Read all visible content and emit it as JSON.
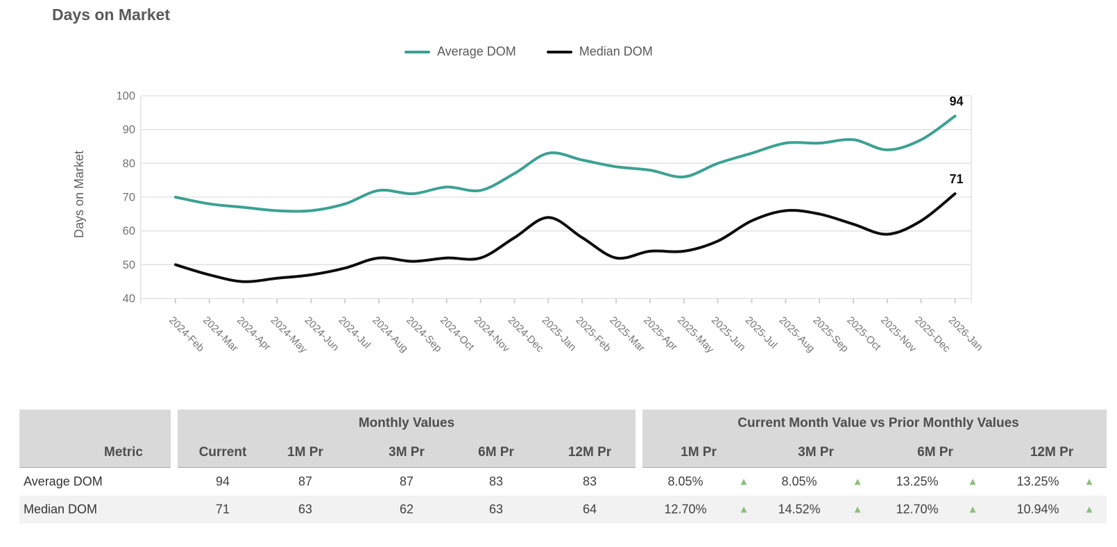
{
  "title": "Days on Market",
  "legend": [
    {
      "label": "Average DOM",
      "color": "#3ba192"
    },
    {
      "label": "Median DOM",
      "color": "#0d0d0d"
    }
  ],
  "chart_data": {
    "type": "line",
    "x": [
      "2024-Feb",
      "2024-Mar",
      "2024-Apr",
      "2024-May",
      "2024-Jun",
      "2024-Jul",
      "2024-Aug",
      "2024-Sep",
      "2024-Oct",
      "2024-Nov",
      "2024-Dec",
      "2025-Jan",
      "2025-Feb",
      "2025-Mar",
      "2025-Apr",
      "2025-May",
      "2025-Jun",
      "2025-Jul",
      "2025-Aug",
      "2025-Sep",
      "2025-Oct",
      "2025-Nov",
      "2025-Dec",
      "2026-Jan"
    ],
    "series": [
      {
        "name": "Average DOM",
        "color": "#3ba192",
        "values": [
          70,
          68,
          67,
          66,
          66,
          68,
          72,
          71,
          73,
          72,
          77,
          83,
          81,
          79,
          78,
          76,
          80,
          83,
          86,
          86,
          87,
          84,
          87,
          94
        ]
      },
      {
        "name": "Median DOM",
        "color": "#0d0d0d",
        "values": [
          50,
          47,
          45,
          46,
          47,
          49,
          52,
          51,
          52,
          52,
          58,
          64,
          58,
          52,
          54,
          54,
          57,
          63,
          66,
          65,
          62,
          59,
          63,
          71
        ]
      }
    ],
    "end_labels": [
      "94",
      "71"
    ],
    "title": "Days on Market",
    "xlabel": "",
    "ylabel": "Days on Market",
    "ylim": [
      40,
      100
    ],
    "yticks": [
      100,
      90,
      80,
      70,
      60,
      50,
      40
    ],
    "grid": true,
    "legend_position": "top",
    "smooth": true
  },
  "table": {
    "metric_header": "Metric",
    "groups": [
      {
        "title": "Monthly Values",
        "columns": [
          "Current",
          "1M Pr",
          "3M Pr",
          "6M Pr",
          "12M Pr"
        ]
      },
      {
        "title": "Current Month Value vs Prior Monthly Values",
        "columns": [
          "1M Pr",
          "3M Pr",
          "6M Pr",
          "12M Pr"
        ]
      }
    ],
    "rows": [
      {
        "metric": "Average DOM",
        "monthly": [
          "94",
          "87",
          "87",
          "83",
          "83"
        ],
        "vs_prior": [
          {
            "value": "8.05%",
            "direction": "up"
          },
          {
            "value": "8.05%",
            "direction": "up"
          },
          {
            "value": "13.25%",
            "direction": "up"
          },
          {
            "value": "13.25%",
            "direction": "up"
          }
        ]
      },
      {
        "metric": "Median DOM",
        "monthly": [
          "71",
          "63",
          "62",
          "63",
          "64"
        ],
        "vs_prior": [
          {
            "value": "12.70%",
            "direction": "up"
          },
          {
            "value": "14.52%",
            "direction": "up"
          },
          {
            "value": "12.70%",
            "direction": "up"
          },
          {
            "value": "10.94%",
            "direction": "up"
          }
        ]
      }
    ],
    "up_icon": "▲",
    "up_color": "#8cbe7b"
  },
  "colors": {
    "accent_teal": "#3ba192",
    "line_black": "#0d0d0d",
    "positive_green": "#8cbe7b",
    "header_bg": "#d9d9d9",
    "alt_row_bg": "#f2f2f2",
    "gridline": "#dfdfdf",
    "text_gray": "#595959"
  }
}
